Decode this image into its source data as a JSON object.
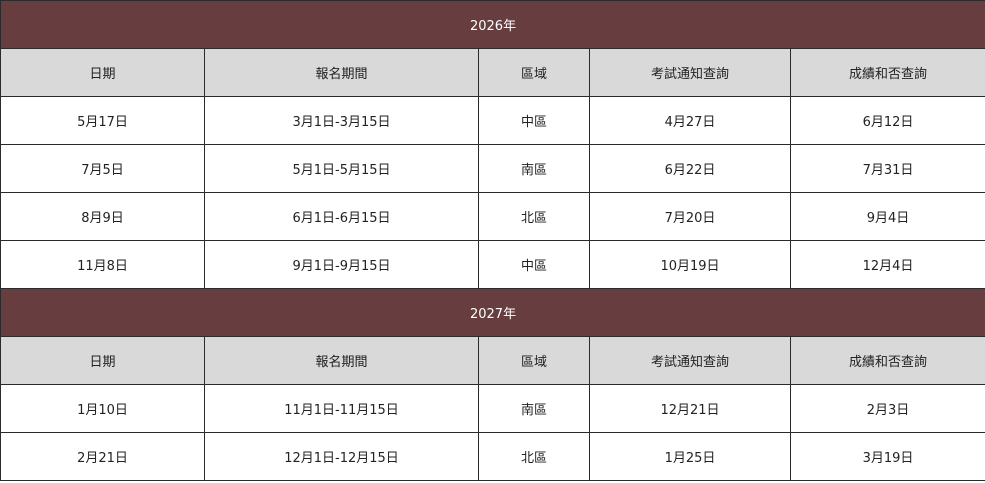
{
  "colors": {
    "year_bar": "#673d3f",
    "header_bg": "#d9d9d9"
  },
  "headers": [
    "日期",
    "報名期間",
    "區域",
    "考試通知查詢",
    "成績和否查詢"
  ],
  "sections": [
    {
      "year": "2026年",
      "rows": [
        [
          "5月17日",
          "3月1日-3月15日",
          "中區",
          "4月27日",
          "6月12日"
        ],
        [
          "7月5日",
          "5月1日-5月15日",
          "南區",
          "6月22日",
          "7月31日"
        ],
        [
          "8月9日",
          "6月1日-6月15日",
          "北區",
          "7月20日",
          "9月4日"
        ],
        [
          "11月8日",
          "9月1日-9月15日",
          "中區",
          "10月19日",
          "12月4日"
        ]
      ]
    },
    {
      "year": "2027年",
      "rows": [
        [
          "1月10日",
          "11月1日-11月15日",
          "南區",
          "12月21日",
          "2月3日"
        ],
        [
          "2月21日",
          "12月1日-12月15日",
          "北區",
          "1月25日",
          "3月19日"
        ]
      ]
    }
  ]
}
